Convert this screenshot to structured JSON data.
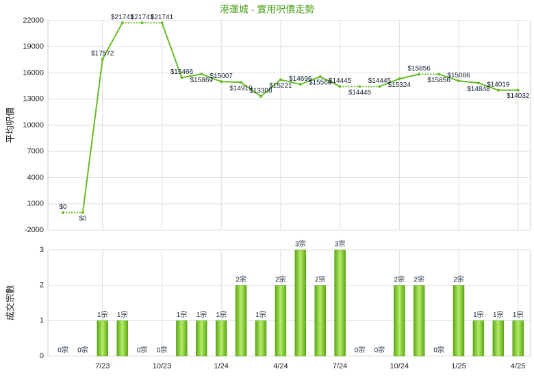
{
  "chart_data": [
    {
      "type": "line",
      "title": "港運城 - 實用呎價走勢",
      "ylabel": "平均呎價",
      "color": "#66bb22",
      "values": [
        0,
        0,
        17572,
        21741,
        21741,
        21741,
        15466,
        15869,
        15007,
        14919,
        13308,
        15221,
        14696,
        15566,
        14445,
        14445,
        14445,
        15324,
        15856,
        15856,
        15086,
        14848,
        14019,
        14032
      ],
      "value_labels": [
        "$0",
        "$0",
        "$17572",
        "$21741",
        "$21741",
        "$21741",
        "$15466",
        "$15869",
        "$15007",
        "$14919",
        "$13308",
        "$15221",
        "$14696",
        "$15566",
        "$14445",
        "$14445",
        "$14445",
        "$15324",
        "$15856",
        "$15856",
        "$15086",
        "$14848",
        "$14019",
        "$14032"
      ],
      "ylim": [
        -2000,
        22000
      ],
      "yticks": [
        -2000,
        1000,
        4000,
        7000,
        10000,
        13000,
        16000,
        19000,
        22000
      ],
      "grid": true
    },
    {
      "type": "bar",
      "ylabel": "成交宗數",
      "color": "#77c428",
      "categories": [
        null,
        null,
        "7/23",
        null,
        null,
        "10/23",
        null,
        null,
        "1/24",
        null,
        null,
        "4/24",
        null,
        null,
        "7/24",
        null,
        null,
        "10/24",
        null,
        null,
        "1/25",
        null,
        null,
        "4/25"
      ],
      "values": [
        0,
        0,
        1,
        1,
        0,
        0,
        1,
        1,
        1,
        2,
        1,
        2,
        3,
        2,
        3,
        0,
        0,
        2,
        2,
        0,
        2,
        1,
        1,
        1
      ],
      "value_labels": [
        "0宗",
        "0宗",
        "1宗",
        "1宗",
        "0宗",
        "0宗",
        "1宗",
        "1宗",
        "1宗",
        "2宗",
        "1宗",
        "2宗",
        "3宗",
        "2宗",
        "3宗",
        "0宗",
        "0宗",
        "2宗",
        "2宗",
        "0宗",
        "2宗",
        "1宗",
        "1宗",
        "1宗"
      ],
      "ylim": [
        0,
        3
      ],
      "yticks": [
        0,
        1,
        2,
        3
      ],
      "grid": true
    }
  ]
}
